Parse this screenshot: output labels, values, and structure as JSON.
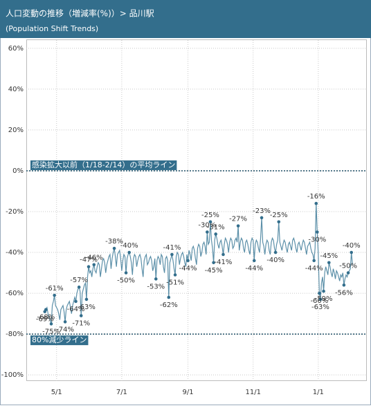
{
  "chart_data": {
    "type": "line",
    "title": "人口変動の推移（増減率(%)）> 品川駅",
    "subtitle": "(Population Shift Trends)",
    "ylim": [
      -103,
      63
    ],
    "yticks": [
      {
        "value": 60,
        "label": "60%"
      },
      {
        "value": 40,
        "label": "40%"
      },
      {
        "value": 20,
        "label": "20%"
      },
      {
        "value": 0,
        "label": "0%"
      },
      {
        "value": -20,
        "label": "-20%"
      },
      {
        "value": -40,
        "label": "-40%"
      },
      {
        "value": -60,
        "label": "-60%"
      },
      {
        "value": -80,
        "label": "-80%"
      },
      {
        "value": -100,
        "label": "-100%"
      }
    ],
    "grid": true,
    "reference_lines": [
      {
        "value": 0,
        "label": "感染拡大以前（1/18-2/14）の平均ライン"
      },
      {
        "value": -80,
        "label": "80%減少ライン"
      }
    ],
    "categories": [
      null,
      null,
      null,
      null,
      null,
      null,
      null,
      null,
      null,
      null,
      null,
      "5/1",
      null,
      null,
      null,
      null,
      null,
      null,
      null,
      null,
      null,
      null,
      null,
      null,
      null,
      null,
      null,
      null,
      null,
      null,
      null,
      null,
      null,
      null,
      null,
      null,
      null,
      null,
      null,
      null,
      null,
      null,
      null,
      null,
      null,
      null,
      null,
      null,
      null,
      null,
      null,
      null,
      null,
      null,
      null,
      null,
      null,
      null,
      null,
      null,
      null,
      null,
      null,
      null,
      null,
      null,
      null,
      null,
      null,
      null,
      null,
      null,
      "7/1",
      null,
      null,
      null,
      null,
      null,
      null,
      null,
      null,
      null,
      null,
      null,
      null,
      null,
      null,
      null,
      null,
      null,
      null,
      null,
      null,
      null,
      null,
      null,
      null,
      null,
      null,
      null,
      null,
      null,
      null,
      null,
      null,
      null,
      null,
      null,
      null,
      null,
      null,
      null,
      null,
      null,
      null,
      null,
      null,
      null,
      null,
      null,
      null,
      null,
      null,
      null,
      null,
      null,
      null,
      null,
      null,
      null,
      null,
      null,
      null,
      null,
      "9/1",
      null,
      null,
      null,
      null,
      null,
      null,
      null,
      null,
      null,
      null,
      null,
      null,
      null,
      null,
      null,
      null,
      null,
      null,
      null,
      null,
      null,
      null,
      null,
      null,
      null,
      null,
      null,
      null,
      null,
      null,
      null,
      null,
      null,
      null,
      null,
      null,
      null,
      null,
      null,
      null,
      null,
      null,
      null,
      null,
      null,
      null,
      null,
      null,
      null,
      null,
      null,
      null,
      null,
      null,
      null,
      null,
      null,
      null,
      null,
      null,
      "11/1",
      null,
      null,
      null,
      null,
      null,
      null,
      null,
      null,
      null,
      null,
      null,
      null,
      null,
      null,
      null,
      null,
      null,
      null,
      null,
      null,
      null,
      null,
      null,
      null,
      null,
      null,
      null,
      null,
      null,
      null,
      null,
      null,
      null,
      null,
      null,
      null,
      null,
      null,
      null,
      null,
      null,
      null,
      null,
      null,
      null,
      null,
      null,
      null,
      null,
      null,
      null,
      null,
      null,
      null,
      null,
      null,
      null,
      null,
      null,
      null,
      "1/1",
      null,
      null,
      null,
      null,
      null,
      null,
      null,
      null,
      null,
      null,
      null,
      null,
      null,
      null,
      null,
      null,
      null,
      null,
      null,
      null,
      null,
      null,
      null,
      null,
      null,
      null,
      null,
      null,
      null,
      null,
      null,
      null
    ],
    "series": [
      {
        "color": "#5b8fa8",
        "values": [
          -69,
          -68,
          -67,
          -70,
          -72,
          -73,
          -75,
          -66,
          -64,
          -61,
          -66,
          -67,
          -68,
          -70,
          -73,
          -68,
          -67,
          -66,
          -69,
          -74,
          -68,
          -66,
          -65,
          -64,
          -67,
          -70,
          -66,
          -64,
          -62,
          -64,
          -60,
          -58,
          -57,
          -59,
          -71,
          -60,
          -58,
          -56,
          -55,
          -63,
          -52,
          -47,
          -50,
          -49,
          -52,
          -48,
          -46,
          -49,
          -50,
          -47,
          -45,
          -46,
          -52,
          -48,
          -44,
          -43,
          -45,
          -50,
          -46,
          -44,
          -42,
          -41,
          -48,
          -43,
          -40,
          -38,
          -42,
          -47,
          -41,
          -40,
          -39,
          -43,
          -49,
          -44,
          -41,
          -42,
          -50,
          -43,
          -41,
          -40,
          -42,
          -45,
          -51,
          -43,
          -41,
          -42,
          -47,
          -44,
          -42,
          -41,
          -43,
          -48,
          -52,
          -44,
          -42,
          -41,
          -46,
          -45,
          -43,
          -42,
          -44,
          -49,
          -47,
          -43,
          -53,
          -44,
          -42,
          -43,
          -46,
          -41,
          -42,
          -47,
          -50,
          -43,
          -42,
          -44,
          -62,
          -45,
          -43,
          -41,
          -44,
          -48,
          -51,
          -42,
          -40,
          -41,
          -46,
          -43,
          -41,
          -40,
          -42,
          -45,
          -47,
          -41,
          -44,
          -39,
          -41,
          -44,
          -38,
          -37,
          -39,
          -43,
          -46,
          -38,
          -36,
          -37,
          -42,
          -40,
          -36,
          -35,
          -37,
          -41,
          -30,
          -36,
          -35,
          -25,
          -34,
          -38,
          -45,
          -34,
          -31,
          -33,
          -36,
          -38,
          -35,
          -34,
          -37,
          -41,
          -36,
          -33,
          -34,
          -36,
          -40,
          -35,
          -33,
          -34,
          -38,
          -37,
          -34,
          -33,
          -35,
          -27,
          -39,
          -35,
          -33,
          -34,
          -38,
          -40,
          -35,
          -34,
          -36,
          -39,
          -41,
          -35,
          -33,
          -34,
          -44,
          -36,
          -34,
          -35,
          -38,
          -40,
          -33,
          -23,
          -35,
          -37,
          -41,
          -36,
          -34,
          -35,
          -39,
          -41,
          -35,
          -33,
          -34,
          -38,
          -40,
          -36,
          -34,
          -25,
          -35,
          -37,
          -39,
          -36,
          -34,
          -35,
          -38,
          -40,
          -36,
          -35,
          -37,
          -39,
          -34,
          -33,
          -35,
          -38,
          -40,
          -36,
          -35,
          -37,
          -39,
          -36,
          -34,
          -35,
          -38,
          -41,
          -37,
          -36,
          -35,
          -38,
          -40,
          -41,
          -44,
          -38,
          -16,
          -30,
          -41,
          -60,
          -63,
          -55,
          -52,
          -59,
          -50,
          -47,
          -49,
          -51,
          -45,
          -47,
          -50,
          -52,
          -48,
          -50,
          -53,
          -49,
          -50,
          -52,
          -54,
          -51,
          -52,
          -50,
          -56,
          -53,
          -51,
          -52,
          -50,
          -49,
          -48,
          -40,
          -46
        ],
        "value_labels": [
          "-69%",
          "-68%",
          null,
          null,
          null,
          null,
          "-75%",
          null,
          null,
          "-61%",
          null,
          null,
          null,
          null,
          null,
          null,
          null,
          null,
          null,
          "-74%",
          null,
          null,
          null,
          null,
          null,
          null,
          null,
          null,
          null,
          "-64%",
          null,
          null,
          "-57%",
          null,
          "-71%",
          null,
          null,
          null,
          null,
          "-63%",
          null,
          "-47%",
          null,
          null,
          null,
          null,
          "-46%",
          null,
          null,
          null,
          null,
          null,
          null,
          null,
          null,
          null,
          null,
          null,
          null,
          null,
          null,
          null,
          null,
          null,
          null,
          "-38%",
          null,
          null,
          null,
          null,
          null,
          null,
          null,
          null,
          null,
          null,
          "-50%",
          null,
          null,
          "-40%",
          null,
          null,
          null,
          null,
          null,
          null,
          null,
          null,
          null,
          null,
          null,
          null,
          null,
          null,
          null,
          null,
          null,
          null,
          null,
          null,
          null,
          null,
          null,
          null,
          "-53%",
          null,
          null,
          null,
          null,
          null,
          null,
          null,
          null,
          null,
          null,
          null,
          "-62%",
          null,
          null,
          "-41%",
          null,
          null,
          "-51%",
          null,
          null,
          null,
          null,
          null,
          null,
          null,
          null,
          null,
          null,
          null,
          "-44%",
          null,
          null,
          null,
          null,
          null,
          null,
          null,
          null,
          null,
          null,
          null,
          null,
          null,
          null,
          null,
          null,
          null,
          "-30%",
          null,
          null,
          "-25%",
          null,
          null,
          "-45%",
          null,
          "-31%",
          null,
          null,
          null,
          null,
          null,
          null,
          "-41%",
          null,
          null,
          null,
          null,
          null,
          null,
          null,
          null,
          null,
          null,
          null,
          null,
          null,
          "-27%",
          null,
          null,
          null,
          null,
          null,
          null,
          null,
          null,
          null,
          null,
          null,
          null,
          null,
          null,
          "-44%",
          null,
          null,
          null,
          null,
          null,
          null,
          "-23%",
          null,
          null,
          null,
          null,
          null,
          null,
          null,
          null,
          null,
          null,
          null,
          null,
          "-40%",
          null,
          null,
          "-25%",
          null,
          null,
          null,
          null,
          null,
          null,
          null,
          null,
          null,
          null,
          null,
          null,
          null,
          null,
          null,
          null,
          null,
          null,
          null,
          null,
          null,
          null,
          null,
          null,
          null,
          null,
          null,
          null,
          null,
          null,
          null,
          null,
          "-44%",
          null,
          "-16%",
          "-30%",
          null,
          "-60%",
          "-63%",
          null,
          null,
          "-59%",
          null,
          null,
          null,
          null,
          "-45%",
          null,
          null,
          null,
          null,
          null,
          null,
          null,
          null,
          null,
          null,
          null,
          null,
          null,
          "-56%",
          null,
          null,
          null,
          "-50%",
          null,
          null,
          "-40%",
          null
        ]
      }
    ]
  }
}
